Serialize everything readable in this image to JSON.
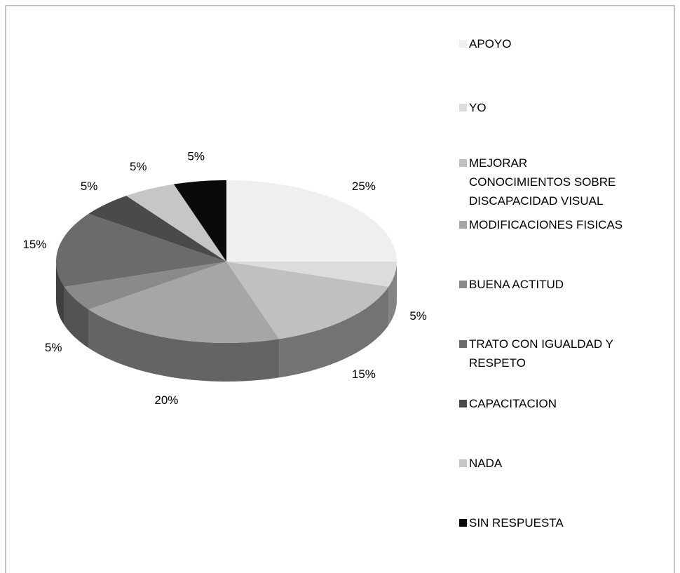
{
  "chart_data": {
    "type": "pie",
    "categories": [
      "APOYO",
      "YO",
      "MEJORAR CONOCIMIENTOS SOBRE DISCAPACIDAD VISUAL",
      "MODIFICACIONES FISICAS",
      "BUENA ACTITUD",
      "TRATO CON IGUALDAD Y RESPETO",
      "CAPACITACION",
      "NADA",
      "SIN RESPUESTA"
    ],
    "values": [
      25,
      5,
      15,
      20,
      5,
      15,
      5,
      5,
      5
    ],
    "value_labels": [
      "25%",
      "5%",
      "15%",
      "20%",
      "5%",
      "15%",
      "5%",
      "5%",
      "5%"
    ],
    "colors": [
      "#efefef",
      "#dcdcdc",
      "#c0c0c0",
      "#a6a6a6",
      "#8a8a8a",
      "#6b6b6b",
      "#4a4a4a",
      "#c6c6c6",
      "#0a0a0a"
    ],
    "legend": "right"
  }
}
